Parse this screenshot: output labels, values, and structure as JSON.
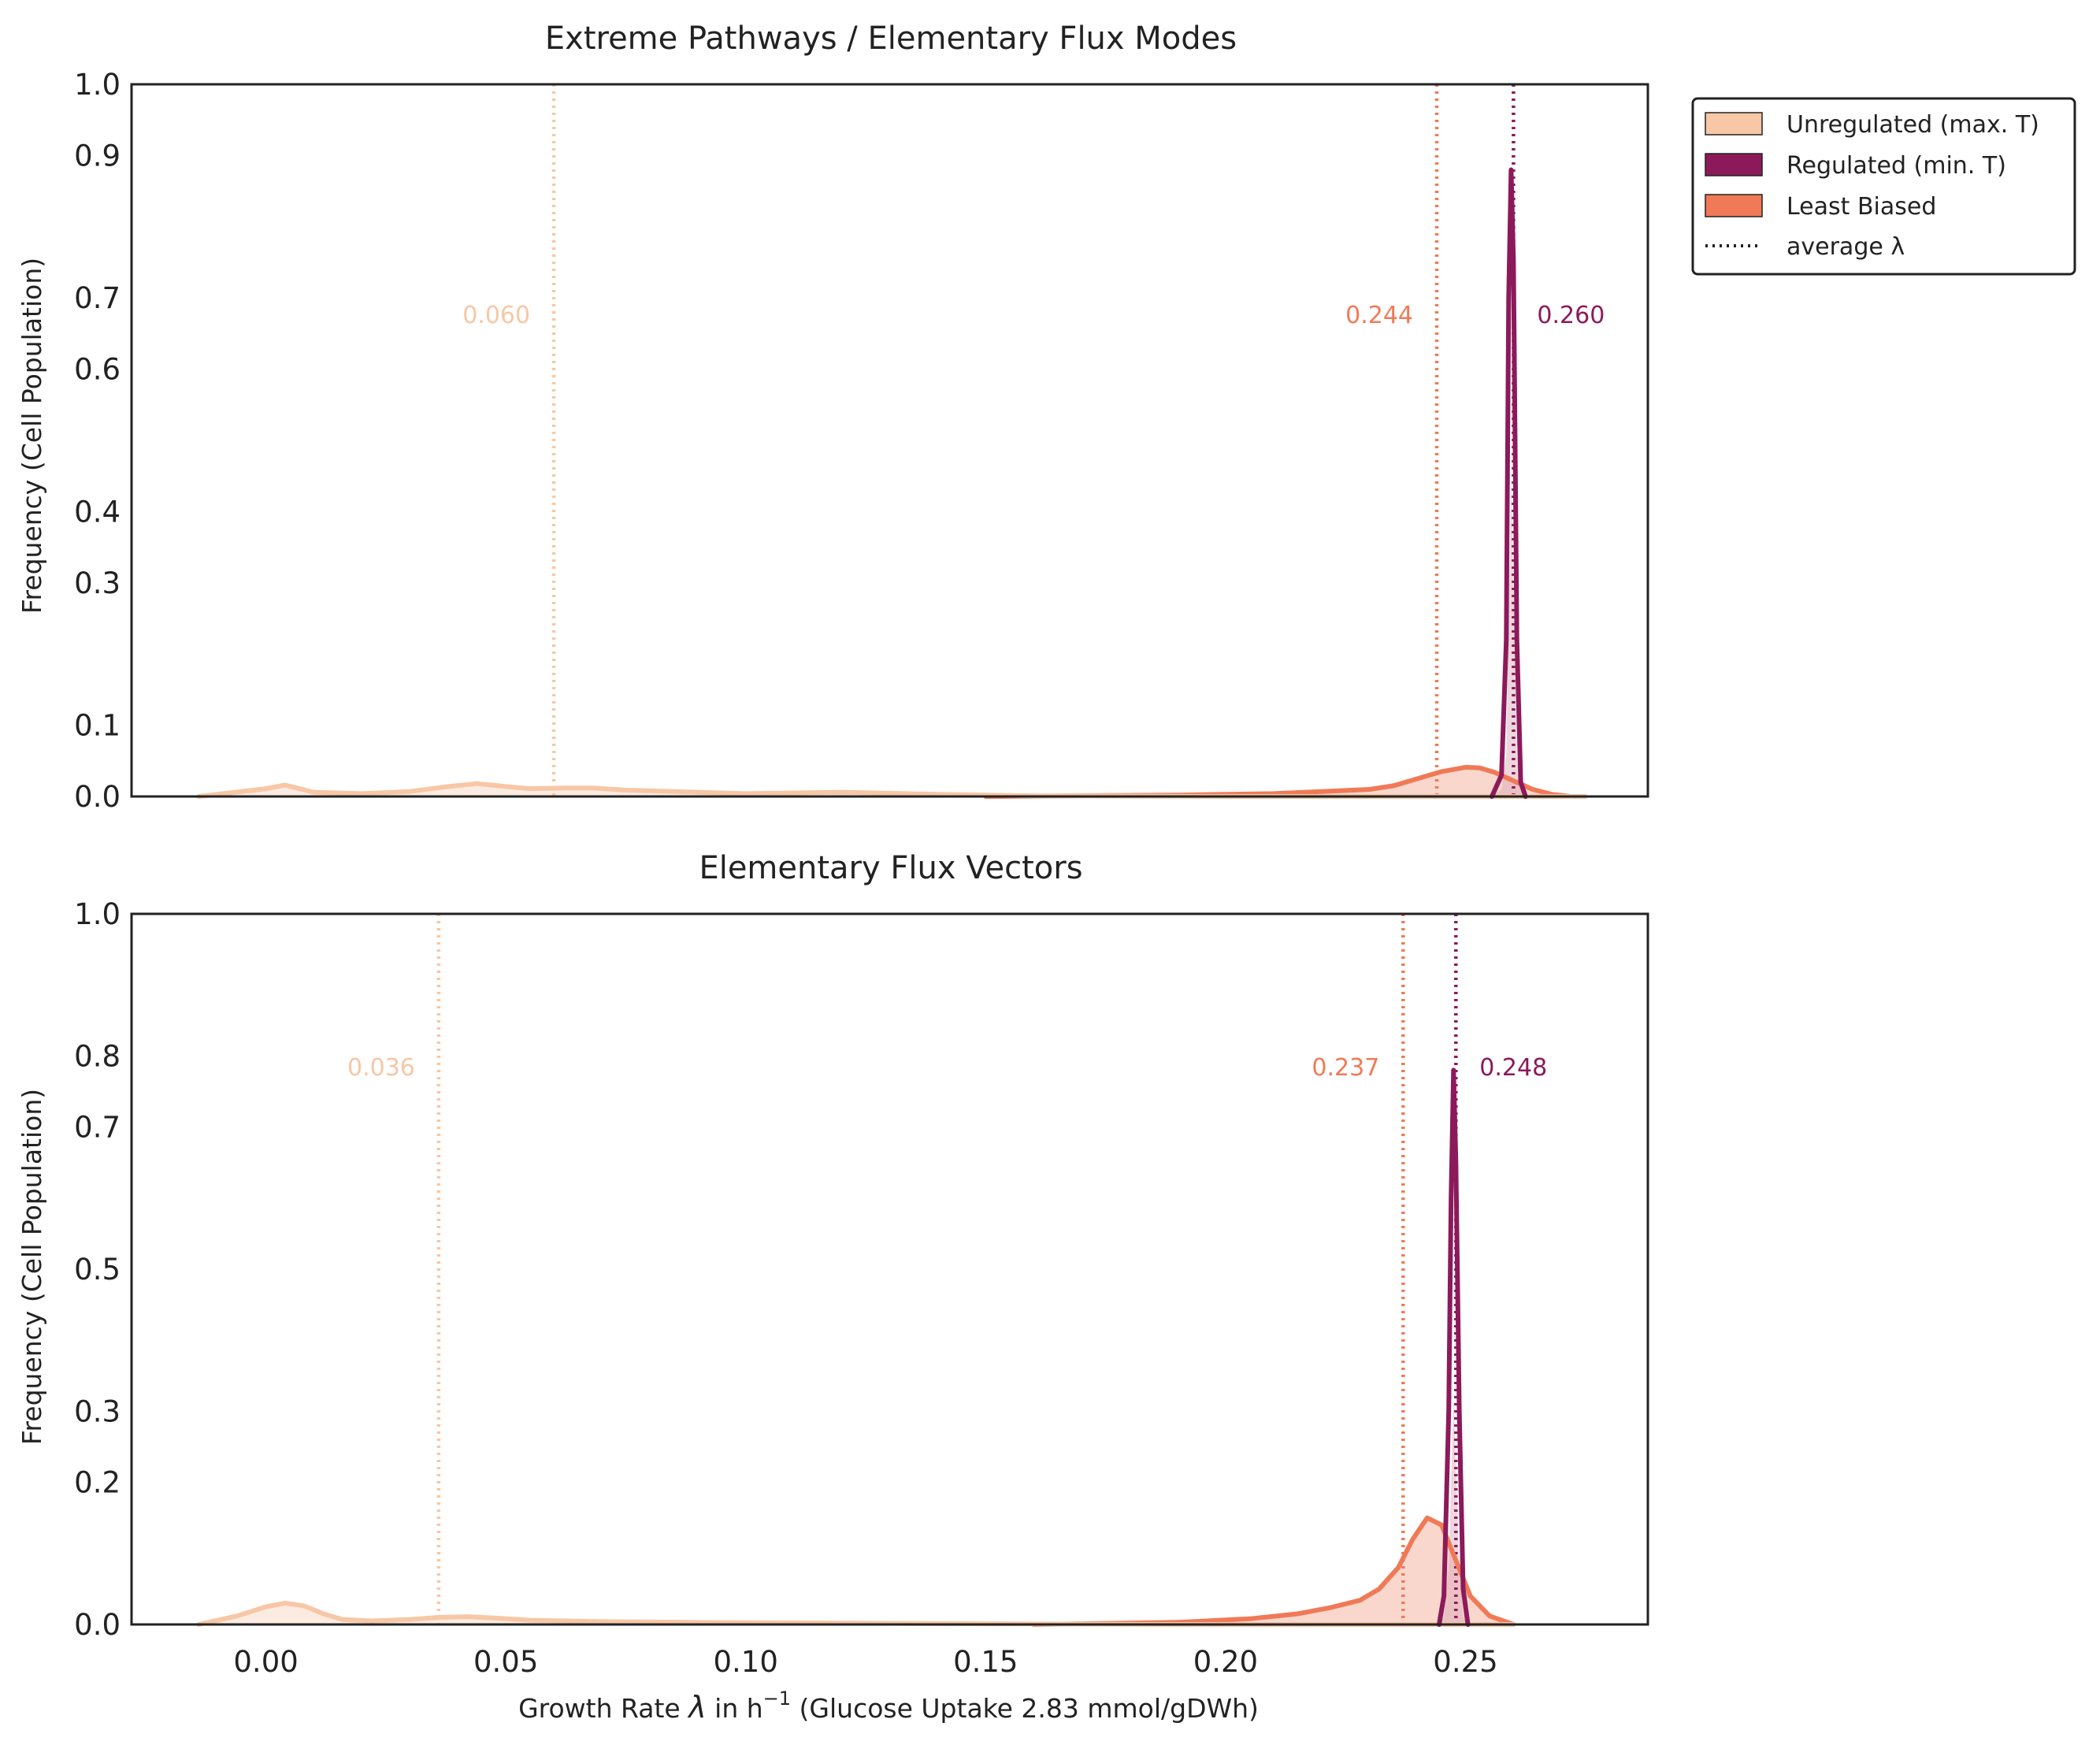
{
  "colors": {
    "unregulated": "#f7c7a6",
    "regulated": "#8c1a5b",
    "least_biased": "#f07a57",
    "axis": "#222222"
  },
  "legend": {
    "placement": "upper right, outside plot",
    "entries": [
      {
        "key": "unregulated",
        "label": "Unregulated (max. T)",
        "kind": "patch"
      },
      {
        "key": "regulated",
        "label": "Regulated (min. T)",
        "kind": "patch"
      },
      {
        "key": "least_biased",
        "label": "Least Biased",
        "kind": "patch"
      },
      {
        "key": "average",
        "label": "average λ",
        "kind": "dotted-line"
      }
    ]
  },
  "xaxis": {
    "label_pre": "Growth Rate ",
    "label_symbol": "λ",
    "label_mid": " in h",
    "label_sup": "−1",
    "label_post": " (Glucose Uptake 2.83 mmol/gDWh)",
    "ticks": [
      "0.00",
      "0.05",
      "0.10",
      "0.15",
      "0.20",
      "0.25"
    ]
  },
  "chart_data": [
    {
      "type": "area",
      "title": "Extreme Pathways / Elementary Flux Modes",
      "ylabel": "Frequency (Cell Population)",
      "xlim": [
        -0.028,
        0.288
      ],
      "ylim": [
        0,
        1.0
      ],
      "grid": false,
      "yticks": [
        "0.0",
        "0.1",
        "0.3",
        "0.4",
        "0.6",
        "0.7",
        "0.9",
        "1.0"
      ],
      "series": [
        {
          "name": "Unregulated (max. T)",
          "key": "unregulated",
          "average": 0.06,
          "average_label": "0.060",
          "x": [
            -0.014,
            0.0,
            0.004,
            0.01,
            0.02,
            0.03,
            0.038,
            0.044,
            0.05,
            0.055,
            0.062,
            0.068,
            0.075,
            0.085,
            0.1,
            0.12,
            0.14,
            0.16,
            0.2,
            0.24,
            0.26,
            0.275
          ],
          "y": [
            0.0,
            0.011,
            0.016,
            0.006,
            0.004,
            0.007,
            0.014,
            0.018,
            0.014,
            0.011,
            0.012,
            0.012,
            0.009,
            0.007,
            0.004,
            0.006,
            0.003,
            0.001,
            0.0,
            0.0,
            0.0,
            0.0
          ]
        },
        {
          "name": "Regulated (min. T)",
          "key": "regulated",
          "average": 0.26,
          "average_label": "0.260",
          "x": [
            0.2555,
            0.2575,
            0.2585,
            0.259,
            0.2595,
            0.26,
            0.2607,
            0.2615,
            0.2625
          ],
          "y": [
            0.0,
            0.03,
            0.22,
            0.7,
            0.88,
            0.75,
            0.22,
            0.02,
            0.0
          ],
          "fill_y": [
            0.0,
            0.01,
            0.06,
            0.25,
            0.45,
            0.3,
            0.06,
            0.01,
            0.0
          ]
        },
        {
          "name": "Least Biased",
          "key": "least_biased",
          "average": 0.244,
          "average_label": "0.244",
          "x": [
            0.15,
            0.19,
            0.21,
            0.22,
            0.23,
            0.235,
            0.24,
            0.245,
            0.25,
            0.253,
            0.256,
            0.26,
            0.264,
            0.268,
            0.272
          ],
          "y": [
            0.0,
            0.002,
            0.004,
            0.007,
            0.01,
            0.015,
            0.025,
            0.035,
            0.041,
            0.04,
            0.034,
            0.022,
            0.01,
            0.003,
            0.0
          ]
        }
      ]
    },
    {
      "type": "area",
      "title": "Elementary Flux Vectors",
      "ylabel": "Frequency (Cell Population)",
      "xlim": [
        -0.028,
        0.288
      ],
      "ylim": [
        0,
        1.0
      ],
      "grid": false,
      "yticks": [
        "0.0",
        "0.2",
        "0.3",
        "0.5",
        "0.7",
        "0.8",
        "1.0"
      ],
      "series": [
        {
          "name": "Unregulated (max. T)",
          "key": "unregulated",
          "average": 0.036,
          "average_label": "0.036",
          "x": [
            -0.014,
            -0.006,
            0.0,
            0.004,
            0.008,
            0.012,
            0.016,
            0.022,
            0.03,
            0.036,
            0.042,
            0.048,
            0.055,
            0.07,
            0.09,
            0.12,
            0.15,
            0.19,
            0.22,
            0.26
          ],
          "y": [
            0.0,
            0.012,
            0.025,
            0.03,
            0.026,
            0.015,
            0.007,
            0.005,
            0.007,
            0.01,
            0.011,
            0.009,
            0.006,
            0.004,
            0.003,
            0.002,
            0.001,
            0.0,
            0.0,
            0.0
          ]
        },
        {
          "name": "Regulated (min. T)",
          "key": "regulated",
          "average": 0.248,
          "average_label": "0.248",
          "x": [
            0.2445,
            0.2455,
            0.2465,
            0.247,
            0.2475,
            0.248,
            0.2487,
            0.2495,
            0.2505
          ],
          "y": [
            0.0,
            0.04,
            0.3,
            0.6,
            0.78,
            0.65,
            0.3,
            0.05,
            0.0
          ],
          "fill_y": [
            0.0,
            0.01,
            0.08,
            0.2,
            0.32,
            0.22,
            0.08,
            0.01,
            0.0
          ]
        },
        {
          "name": "Least Biased",
          "key": "least_biased",
          "average": 0.237,
          "average_label": "0.237",
          "x": [
            0.16,
            0.19,
            0.205,
            0.215,
            0.222,
            0.228,
            0.232,
            0.236,
            0.239,
            0.242,
            0.245,
            0.248,
            0.251,
            0.255,
            0.26
          ],
          "y": [
            0.0,
            0.003,
            0.008,
            0.015,
            0.024,
            0.034,
            0.05,
            0.08,
            0.12,
            0.15,
            0.14,
            0.09,
            0.04,
            0.012,
            0.0
          ]
        }
      ]
    }
  ]
}
